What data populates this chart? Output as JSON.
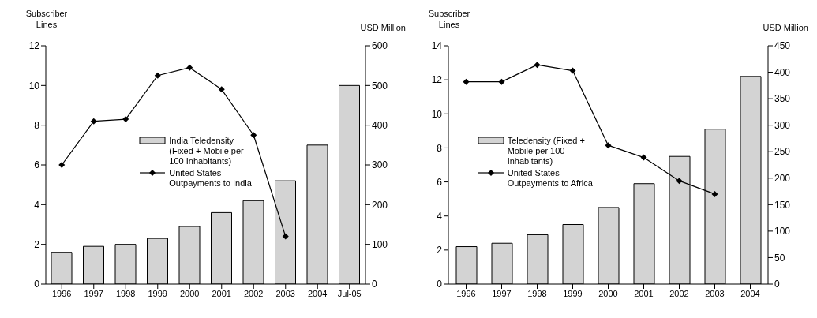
{
  "chart_data": [
    {
      "type": "bar",
      "ylabel": "Subscriber Lines",
      "y2label": "USD Million",
      "categories": [
        "1996",
        "1997",
        "1998",
        "1999",
        "2000",
        "2001",
        "2002",
        "2003",
        "2004",
        "Jul-05"
      ],
      "series": [
        {
          "name": "India Teledensity (Fixed + Mobile per 100 Inhabitants)",
          "color": "#d3d3d3",
          "values": [
            1.6,
            1.9,
            2.0,
            2.3,
            2.9,
            3.6,
            4.2,
            5.2,
            7.0,
            10.0
          ]
        },
        {
          "name": "United States Outpayments to India",
          "type": "line",
          "axis": "y2",
          "color": "#000000",
          "values": [
            300,
            410,
            415,
            525,
            545,
            490,
            375,
            120,
            null,
            null
          ]
        }
      ],
      "ylim": [
        0,
        12
      ],
      "yticks": [
        0,
        2,
        4,
        6,
        8,
        10,
        12
      ],
      "y2lim": [
        0,
        600
      ],
      "y2ticks": [
        0,
        100,
        200,
        300,
        400,
        500,
        600
      ],
      "grid": false,
      "legend": "center left",
      "marker": "diamond"
    },
    {
      "type": "bar",
      "ylabel": "Subscriber Lines",
      "y2label": "USD Million",
      "categories": [
        "1996",
        "1997",
        "1998",
        "1999",
        "2000",
        "2001",
        "2002",
        "2003",
        "2004"
      ],
      "series": [
        {
          "name": "Teledensity (Fixed + Mobile per 100 Inhabitants)",
          "color": "#d3d3d3",
          "values": [
            2.2,
            2.4,
            2.9,
            3.5,
            4.5,
            5.9,
            7.5,
            9.1,
            12.2
          ]
        },
        {
          "name": "United States Outpayments to Africa",
          "type": "line",
          "axis": "y2",
          "color": "#000000",
          "values": [
            382,
            382,
            414,
            403,
            262,
            239,
            195,
            170,
            null
          ]
        }
      ],
      "ylim": [
        0,
        14
      ],
      "yticks": [
        0,
        2,
        4,
        6,
        8,
        10,
        12,
        14
      ],
      "y2lim": [
        0,
        450
      ],
      "y2ticks": [
        0,
        50,
        100,
        150,
        200,
        250,
        300,
        350,
        400,
        450
      ],
      "grid": false,
      "legend": "left",
      "marker": "diamond"
    }
  ]
}
